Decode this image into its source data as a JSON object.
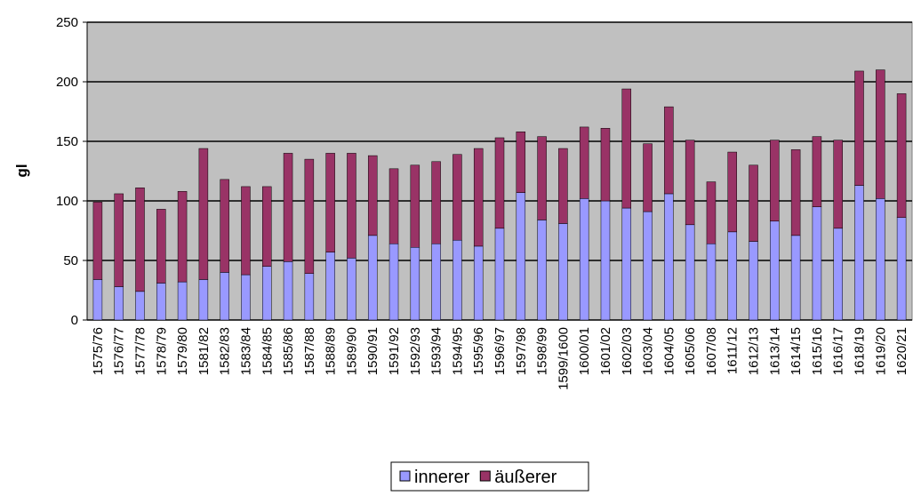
{
  "chart_data": {
    "type": "stacked_bar",
    "y_label": "gl",
    "categories": [
      "1575/76",
      "1576/77",
      "1577/78",
      "1578/79",
      "1579/80",
      "1581/82",
      "1582/83",
      "1583/84",
      "1584/85",
      "1585/86",
      "1587/88",
      "1588/89",
      "1589/90",
      "1590/91",
      "1591/92",
      "1592/93",
      "1593/94",
      "1594/95",
      "1595/96",
      "1596/97",
      "1597/98",
      "1598/99",
      "1599/1600",
      "1600/01",
      "1601/02",
      "1602/03",
      "1603/04",
      "1604/05",
      "1605/06",
      "1607/08",
      "1611/12",
      "1612/13",
      "1613/14",
      "1614/15",
      "1615/16",
      "1616/17",
      "1618/19",
      "1619/20",
      "1620/21"
    ],
    "series": [
      {
        "name": "innerer",
        "color": "#9999ff",
        "values": [
          34,
          28,
          24,
          31,
          32,
          34,
          40,
          38,
          45,
          49,
          39,
          57,
          52,
          71,
          64,
          61,
          64,
          67,
          62,
          77,
          107,
          84,
          81,
          102,
          100,
          94,
          91,
          106,
          80,
          64,
          74,
          66,
          83,
          71,
          95,
          77,
          113,
          102,
          86
        ]
      },
      {
        "name": "äußerer",
        "color": "#993366",
        "values": [
          65,
          78,
          87,
          62,
          76,
          110,
          78,
          74,
          67,
          91,
          96,
          83,
          88,
          67,
          63,
          69,
          69,
          72,
          82,
          76,
          51,
          70,
          63,
          60,
          61,
          100,
          57,
          73,
          71,
          52,
          67,
          64,
          68,
          72,
          59,
          74,
          96,
          108,
          104
        ]
      }
    ],
    "ylim": [
      0,
      250
    ],
    "yticks": [
      0,
      50,
      100,
      150,
      200,
      250
    ],
    "grid": true,
    "legend": "bottom"
  }
}
